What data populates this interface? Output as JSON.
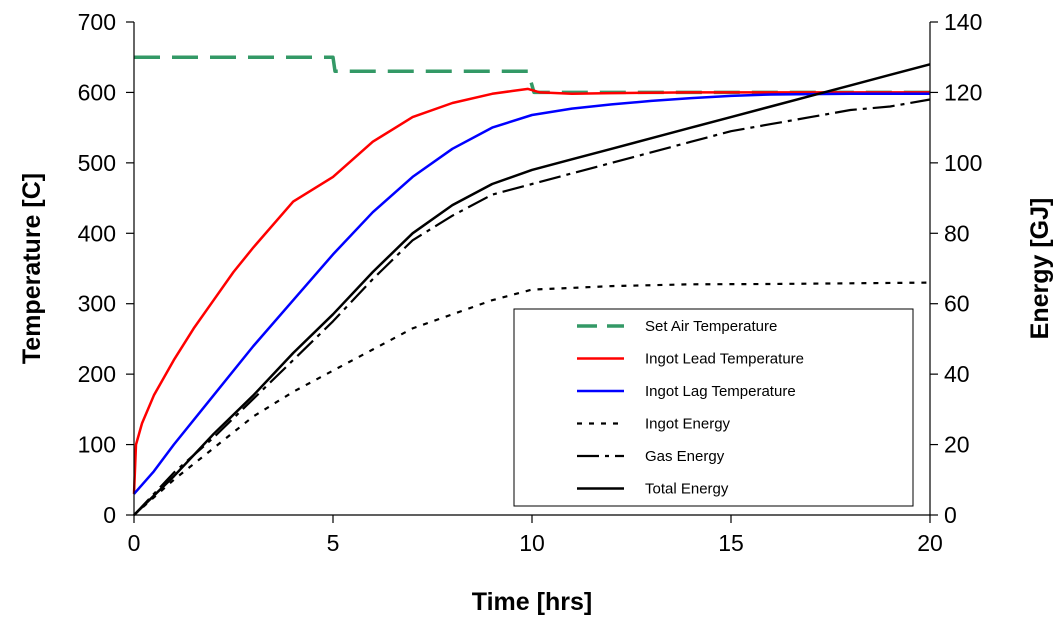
{
  "chart_data": {
    "type": "line",
    "title": "",
    "xlabel": "Time [hrs]",
    "ylabel": "Temperature [C]",
    "y2label": "Energy [GJ]",
    "xlim": [
      0,
      20
    ],
    "ylim": [
      0,
      700
    ],
    "y2lim": [
      0,
      140
    ],
    "xticks": [
      "0",
      "5",
      "10",
      "15",
      "20"
    ],
    "yticks": [
      "0",
      "100",
      "200",
      "300",
      "400",
      "500",
      "600",
      "700"
    ],
    "y2ticks": [
      "0",
      "20",
      "40",
      "60",
      "80",
      "100",
      "120",
      "140"
    ],
    "grid": false,
    "legend_position": "bottom-right",
    "series": [
      {
        "name": "Set Air Temperature",
        "axis": "left",
        "color": "#339966",
        "style": "long-dash",
        "x": [
          0,
          5,
          5.05,
          9.9,
          10.05,
          20
        ],
        "y": [
          650,
          650,
          630,
          630,
          600,
          600
        ]
      },
      {
        "name": "Ingot Lead Temperature",
        "axis": "left",
        "color": "#ff0000",
        "style": "solid",
        "x": [
          0,
          0.05,
          0.2,
          0.5,
          1,
          1.5,
          2,
          2.5,
          3,
          4,
          5,
          6,
          7,
          8,
          9,
          9.5,
          9.9,
          10.2,
          11,
          12,
          14,
          16,
          18,
          20
        ],
        "y": [
          30,
          100,
          130,
          170,
          220,
          265,
          305,
          345,
          380,
          445,
          480,
          530,
          565,
          585,
          598,
          602,
          605,
          600,
          598,
          599,
          600,
          600,
          600,
          600
        ]
      },
      {
        "name": "Ingot Lag Temperature",
        "axis": "left",
        "color": "#0000ff",
        "style": "solid",
        "x": [
          0,
          0.5,
          1,
          2,
          3,
          4,
          5,
          6,
          7,
          8,
          9,
          10,
          11,
          12,
          13,
          14,
          15,
          16,
          18,
          20
        ],
        "y": [
          30,
          62,
          100,
          170,
          240,
          305,
          370,
          430,
          480,
          520,
          550,
          568,
          577,
          583,
          588,
          592,
          595,
          597,
          598,
          598
        ]
      },
      {
        "name": "Ingot Energy",
        "axis": "right",
        "color": "#000000",
        "style": "short-dash",
        "x": [
          0,
          1,
          2,
          3,
          4,
          5,
          6,
          7,
          8,
          9,
          10,
          11,
          12,
          14,
          16,
          18,
          20
        ],
        "y": [
          0,
          10,
          19,
          28,
          35,
          41,
          47,
          53,
          57,
          61,
          64,
          64.5,
          65,
          65.5,
          65.6,
          65.8,
          66
        ]
      },
      {
        "name": "Gas Energy",
        "axis": "right",
        "color": "#000000",
        "style": "dash-dot",
        "x": [
          0,
          1,
          2,
          3,
          4,
          5,
          6,
          7,
          8,
          9,
          10,
          11,
          12,
          13,
          14,
          15,
          16,
          17,
          18,
          19,
          20
        ],
        "y": [
          0,
          12,
          22,
          33,
          44,
          55,
          67,
          78,
          85,
          91,
          94,
          97,
          100,
          103,
          106,
          109,
          111,
          113,
          115,
          116,
          118
        ]
      },
      {
        "name": "Total Energy",
        "axis": "right",
        "color": "#000000",
        "style": "solid",
        "x": [
          0,
          1,
          2,
          3,
          4,
          5,
          6,
          7,
          8,
          9,
          10,
          11,
          12,
          13,
          14,
          15,
          16,
          17,
          18,
          19,
          20
        ],
        "y": [
          0,
          11,
          23,
          34,
          46,
          57,
          69,
          80,
          88,
          94,
          98,
          101,
          104,
          107,
          110,
          113,
          116,
          119,
          122,
          125,
          128
        ]
      }
    ]
  }
}
